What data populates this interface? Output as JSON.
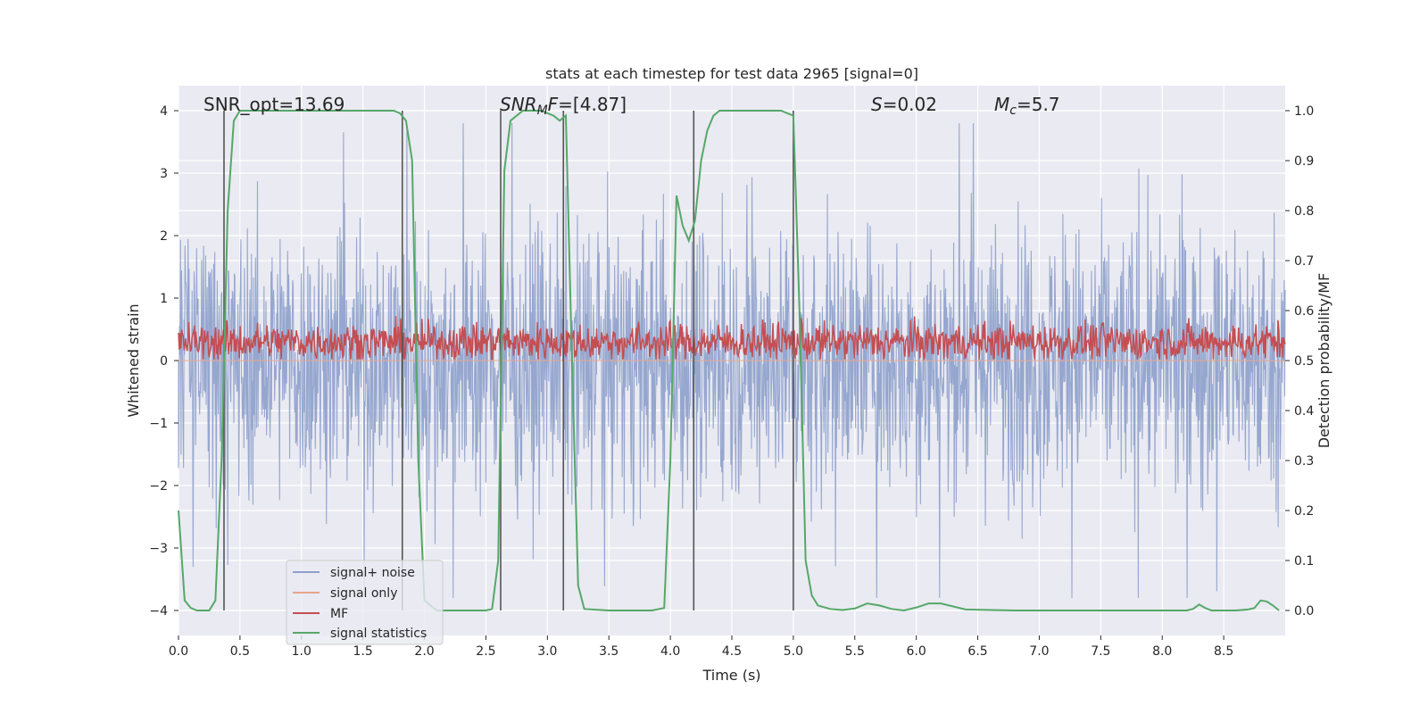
{
  "chart_data": {
    "type": "line",
    "title": "stats at each timestep for test data 2965 [signal=0]",
    "xlabel": "Time (s)",
    "ylabel": "Whitened strain",
    "ylabel_right": "Detection probability/MF",
    "xlim": [
      0.0,
      9.0
    ],
    "ylim": [
      -4.4,
      4.4
    ],
    "ylim_right": [
      -0.05,
      1.05
    ],
    "x_ticks": [
      "0.0",
      "0.5",
      "1.0",
      "1.5",
      "2.0",
      "2.5",
      "3.0",
      "3.5",
      "4.0",
      "4.5",
      "5.0",
      "5.5",
      "6.0",
      "6.5",
      "7.0",
      "7.5",
      "8.0",
      "8.5"
    ],
    "y_ticks": [
      "−4",
      "−3",
      "−2",
      "−1",
      "0",
      "1",
      "2",
      "3",
      "4"
    ],
    "y_right_ticks": [
      "0.0",
      "0.1",
      "0.2",
      "0.3",
      "0.4",
      "0.5",
      "0.6",
      "0.7",
      "0.8",
      "0.9",
      "1.0"
    ],
    "grid": true,
    "legend_position": "lower-left",
    "annotations": {
      "snr_opt": "SNR_opt=13.69",
      "snr_mf": "=[4.87]",
      "s_prefix": "=0.02",
      "mc_prefix": "=5.7"
    },
    "series": [
      {
        "name": "signal+ noise",
        "color": "#8da0cb",
        "axis": "left",
        "kind": "noise",
        "amplitude_range": [
          -3.8,
          3.8
        ]
      },
      {
        "name": "signal only",
        "color": "#e8a58a",
        "axis": "left",
        "kind": "flat"
      },
      {
        "name": "MF",
        "color": "#c44e52",
        "axis": "left",
        "kind": "noise",
        "amplitude_range": [
          0.0,
          1.0
        ]
      },
      {
        "name": "signal statistics",
        "color": "#55a868",
        "axis": "right",
        "x": [
          0.0,
          0.05,
          0.1,
          0.15,
          0.2,
          0.25,
          0.3,
          0.35,
          0.4,
          0.45,
          0.5,
          0.6,
          0.8,
          1.0,
          1.2,
          1.4,
          1.6,
          1.75,
          1.8,
          1.85,
          1.9,
          1.95,
          2.0,
          2.1,
          2.3,
          2.5,
          2.55,
          2.6,
          2.65,
          2.7,
          2.8,
          2.95,
          3.05,
          3.1,
          3.15,
          3.2,
          3.25,
          3.3,
          3.5,
          3.7,
          3.85,
          3.95,
          4.0,
          4.05,
          4.1,
          4.15,
          4.2,
          4.25,
          4.3,
          4.35,
          4.4,
          4.6,
          4.9,
          4.95,
          5.0,
          5.05,
          5.1,
          5.15,
          5.2,
          5.3,
          5.4,
          5.5,
          5.6,
          5.7,
          5.8,
          5.9,
          6.0,
          6.1,
          6.2,
          6.4,
          6.8,
          7.2,
          7.6,
          8.0,
          8.2,
          8.25,
          8.3,
          8.35,
          8.4,
          8.5,
          8.6,
          8.7,
          8.75,
          8.8,
          8.85,
          8.9,
          8.95
        ],
        "values": [
          0.2,
          0.02,
          0.005,
          0.0,
          0.0,
          0.0,
          0.02,
          0.3,
          0.8,
          0.98,
          1.0,
          1.0,
          1.0,
          1.0,
          1.0,
          1.0,
          1.0,
          1.0,
          0.995,
          0.98,
          0.9,
          0.3,
          0.02,
          0.0,
          0.0,
          0.0,
          0.003,
          0.1,
          0.88,
          0.98,
          1.0,
          1.0,
          0.99,
          0.98,
          0.99,
          0.5,
          0.05,
          0.003,
          0.0,
          0.0,
          0.0,
          0.005,
          0.3,
          0.83,
          0.77,
          0.74,
          0.78,
          0.9,
          0.96,
          0.99,
          1.0,
          1.0,
          1.0,
          0.995,
          0.99,
          0.6,
          0.1,
          0.03,
          0.01,
          0.003,
          0.001,
          0.004,
          0.014,
          0.01,
          0.003,
          0.0,
          0.006,
          0.014,
          0.014,
          0.002,
          0.0,
          0.0,
          0.0,
          0.0,
          0.0,
          0.003,
          0.012,
          0.005,
          0.0,
          0.0,
          0.0,
          0.002,
          0.005,
          0.02,
          0.018,
          0.01,
          0.0
        ]
      }
    ],
    "vertical_lines_x": [
      0.37,
      1.82,
      2.62,
      3.13,
      4.19,
      5.0
    ]
  }
}
